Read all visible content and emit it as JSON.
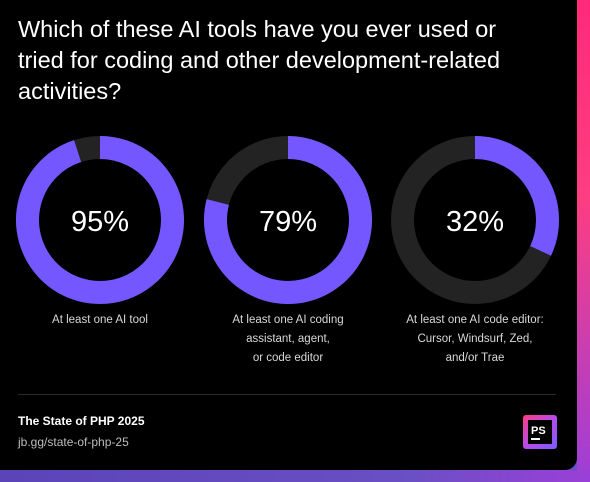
{
  "title": "Which of these AI tools have you ever used or tried for coding and other development-related activities?",
  "chart_data": {
    "type": "pie",
    "variant": "donut",
    "items": [
      {
        "value": 95,
        "label": "95%",
        "caption": [
          "At least one AI tool"
        ]
      },
      {
        "value": 79,
        "label": "79%",
        "caption": [
          "At least one AI coding",
          "assistant, agent,",
          "or code editor"
        ]
      },
      {
        "value": 32,
        "label": "32%",
        "caption": [
          "At least one AI code editor:",
          "Cursor, Windsurf, Zed,",
          "and/or Trae"
        ]
      }
    ],
    "colors": {
      "filled": "#7457ff",
      "remaining": "#232323",
      "label": "#ffffff"
    }
  },
  "footer": {
    "source": "The State of PHP 2025",
    "url": "jb.gg/state-of-php-25",
    "logo_text": "PS"
  }
}
